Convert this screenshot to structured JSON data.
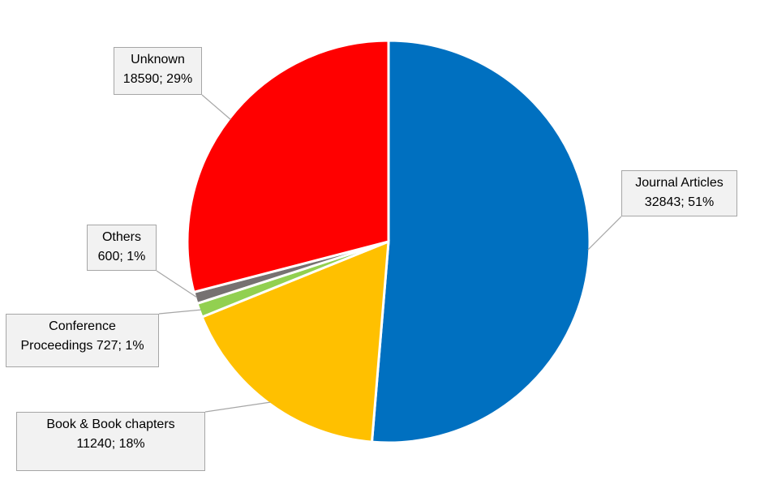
{
  "chart_data": {
    "type": "pie",
    "categories": [
      "Journal Articles",
      "Book & Book chapters",
      "Conference Proceedings",
      "Others",
      "Unknown"
    ],
    "values": [
      32843,
      11240,
      727,
      600,
      18590
    ],
    "value_labels": [
      "32843; 51%",
      "11240; 18%",
      "727; 1%",
      "600; 1%",
      "18590; 29%"
    ],
    "colors": [
      "#0070C0",
      "#FFC000",
      "#92D050",
      "#767171",
      "#FF0000"
    ]
  }
}
